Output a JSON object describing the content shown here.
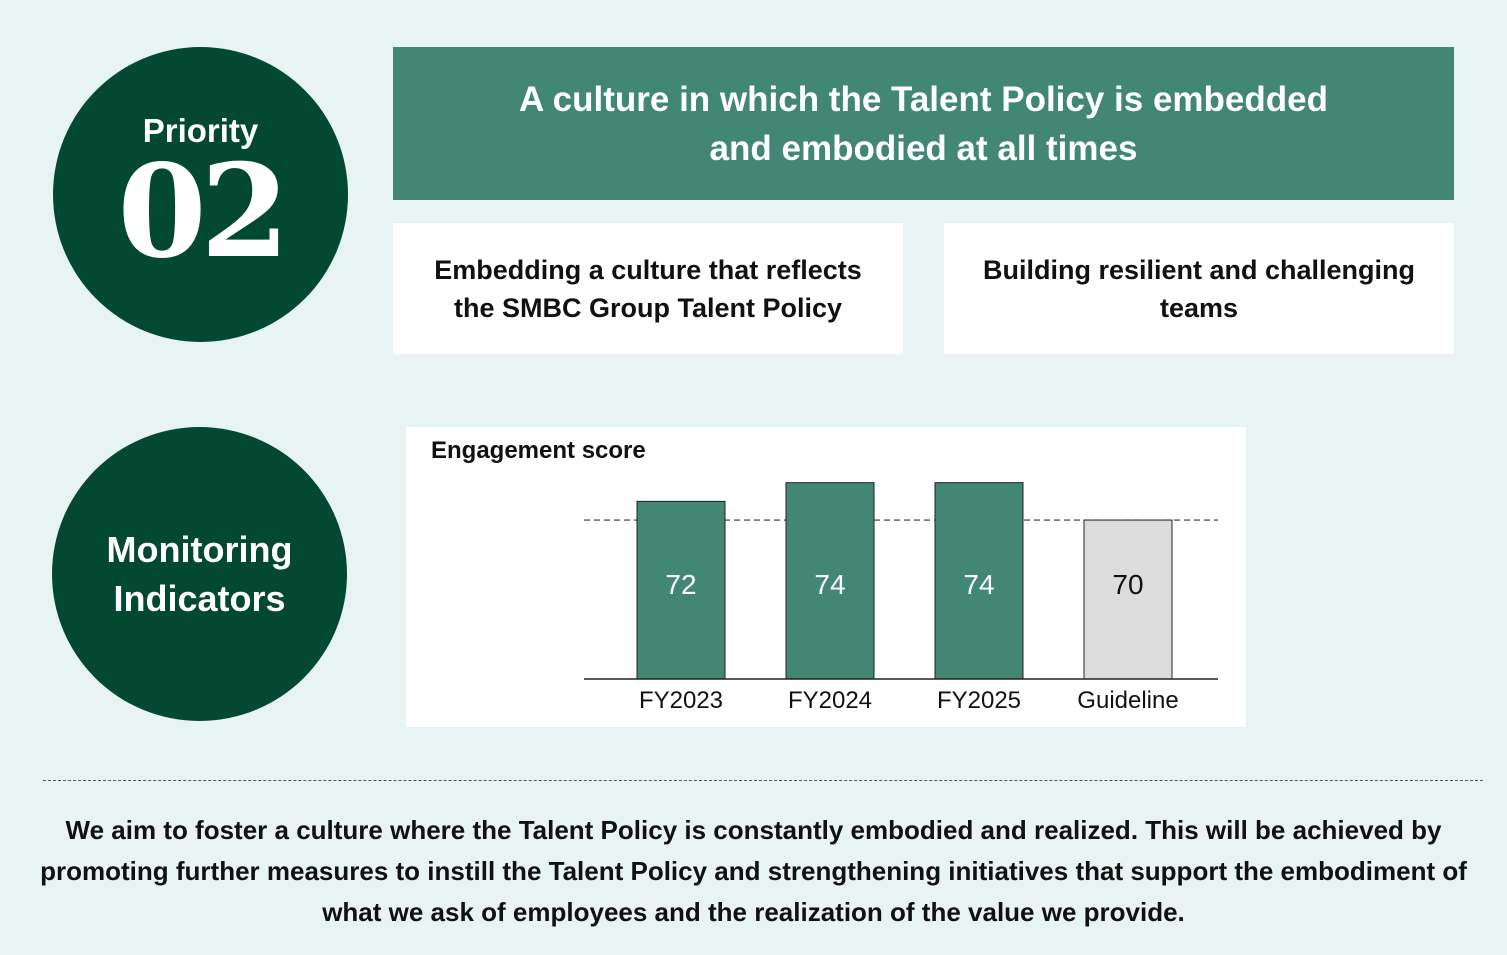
{
  "priority": {
    "label": "Priority",
    "number": "02"
  },
  "headline": "A culture in which the Talent Policy is embedded and embodied at all times",
  "pillars": [
    "Embedding a culture that reflects the SMBC Group Talent Policy",
    "Building resilient and challenging teams"
  ],
  "monitoring": {
    "label": "Monitoring Indicators"
  },
  "chart_data": {
    "type": "bar",
    "title": "Engagement score",
    "categories": [
      "FY2023",
      "FY2024",
      "FY2025",
      "Guideline"
    ],
    "values": [
      72,
      74,
      74,
      70
    ],
    "data_labels": [
      "72",
      "74",
      "74",
      "70"
    ],
    "reference_line": 70,
    "grid": false,
    "legend": "none",
    "colors": {
      "actual": "#418773",
      "guideline": "#dcdcdc",
      "actual_label": "#ffffff",
      "guideline_label": "#111111"
    }
  },
  "summary": "We aim to foster a culture where the Talent Policy is constantly embodied and realized. This will be achieved by promoting further measures to instill the Talent Policy and strengthening initiatives  that support the embodiment of what we ask of employees and the realization of the value we provide."
}
